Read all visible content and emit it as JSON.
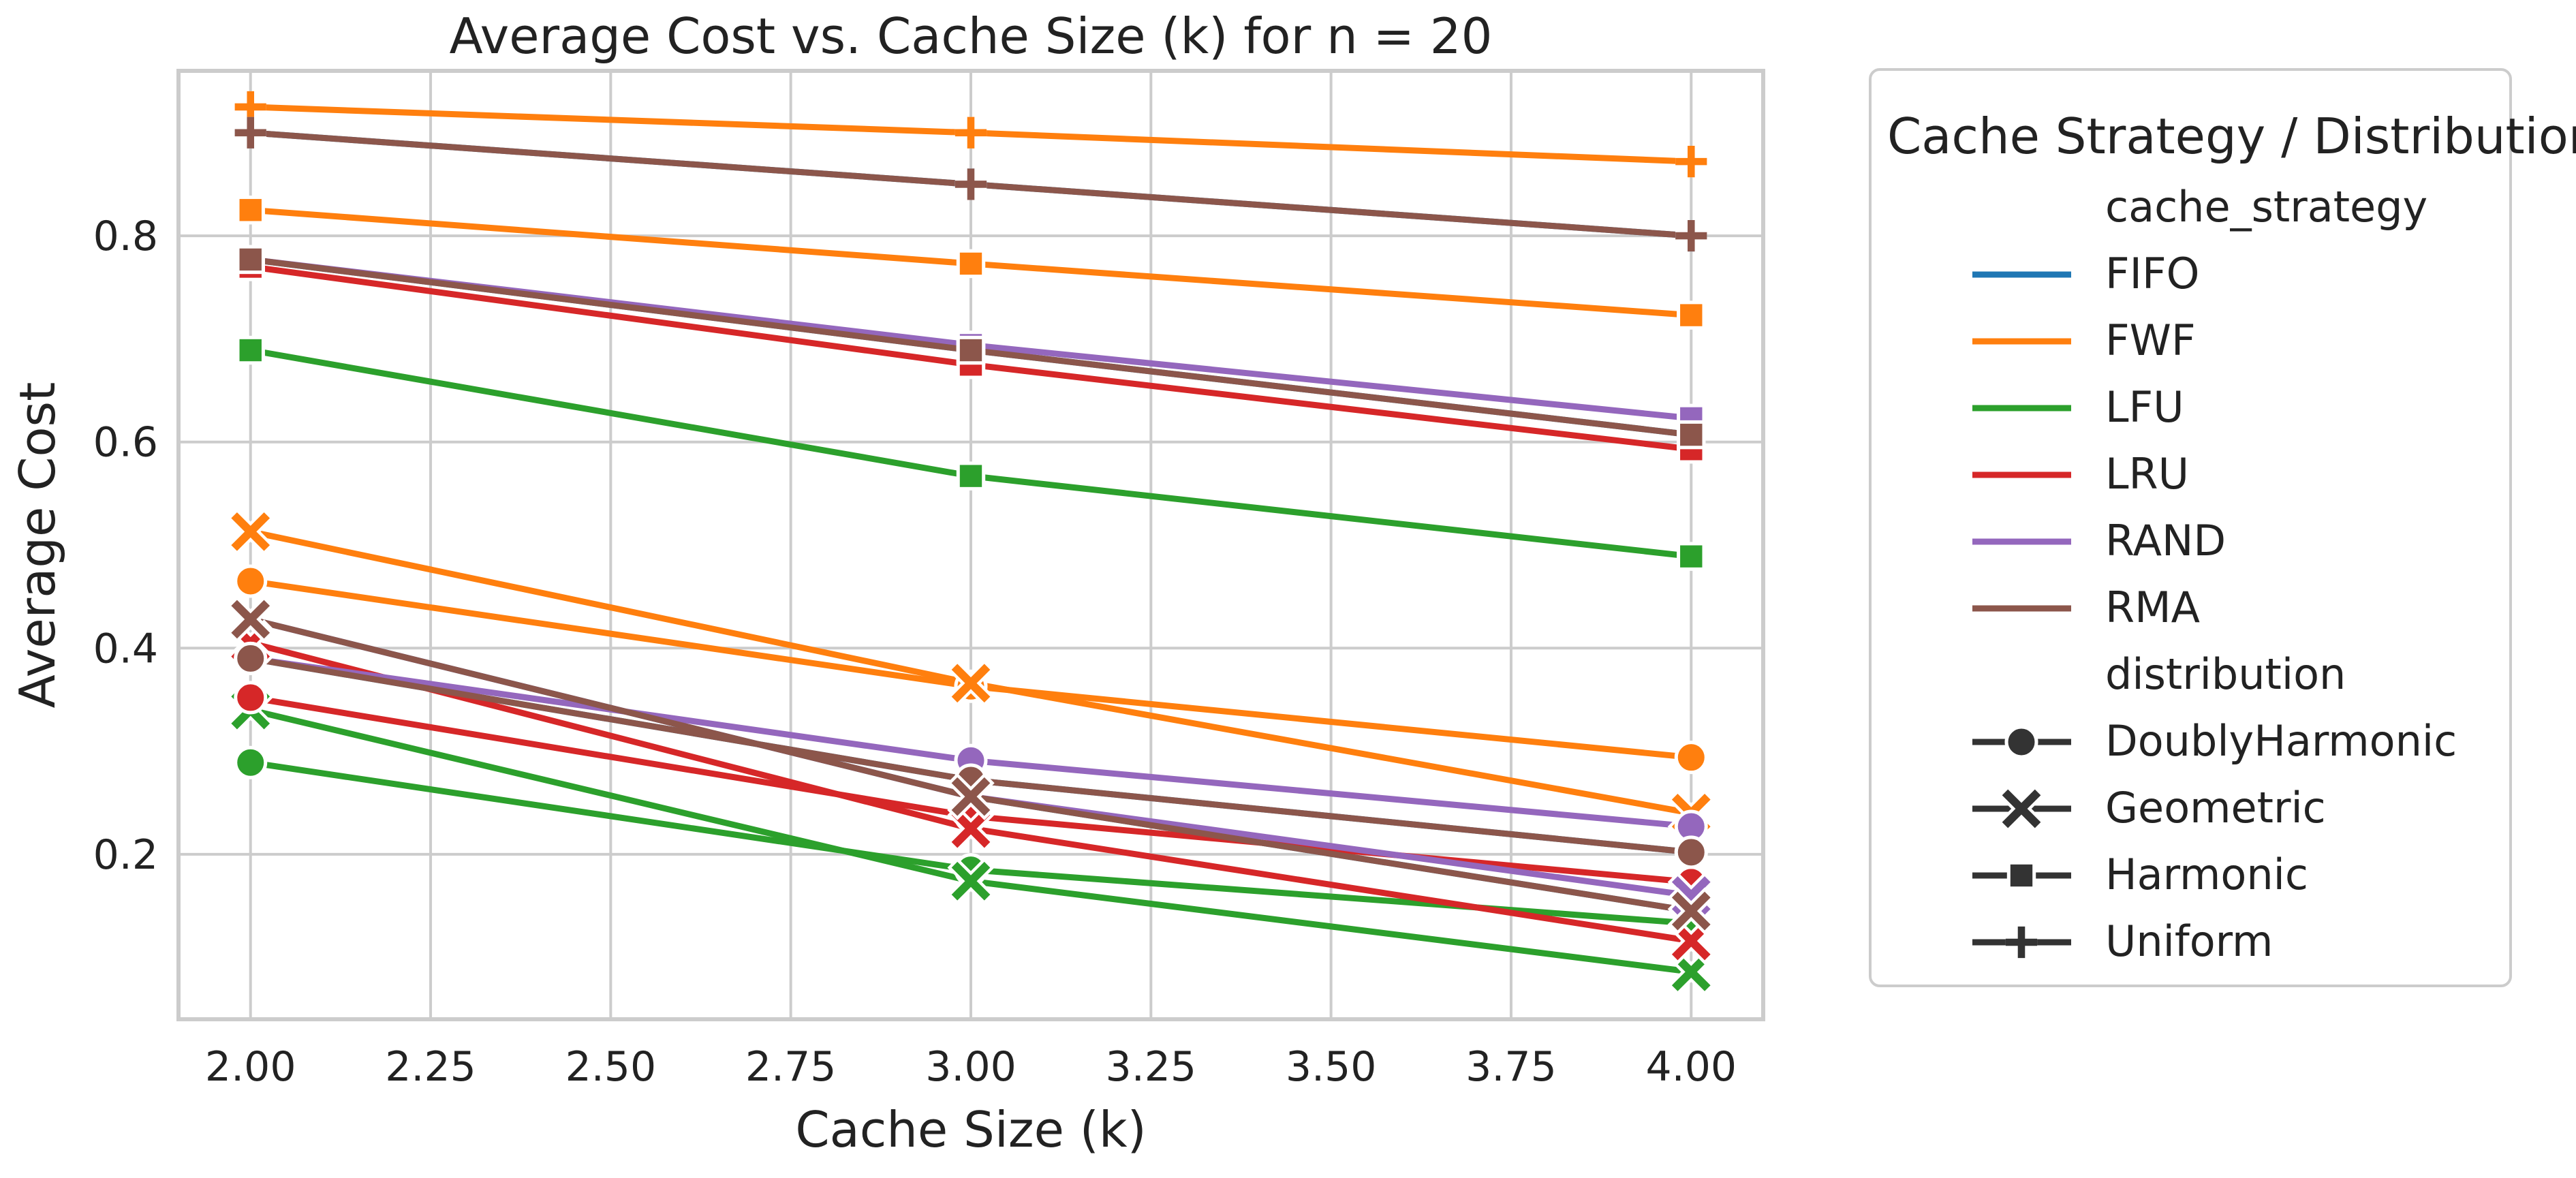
{
  "chart_data": {
    "type": "line",
    "title": "Average Cost vs. Cache Size (k) for n = 20",
    "xlabel": "Cache Size (k)",
    "ylabel": "Average Cost",
    "xlim": [
      1.9,
      4.1
    ],
    "ylim": [
      0.04,
      0.96
    ],
    "xticks": [
      2.0,
      2.25,
      2.5,
      2.75,
      3.0,
      3.25,
      3.5,
      3.75,
      4.0
    ],
    "xtick_labels": [
      "2.00",
      "2.25",
      "2.50",
      "2.75",
      "3.00",
      "3.25",
      "3.50",
      "3.75",
      "4.00"
    ],
    "yticks": [
      0.2,
      0.4,
      0.6,
      0.8
    ],
    "ytick_labels": [
      "0.2",
      "0.4",
      "0.6",
      "0.8"
    ],
    "grid": true,
    "legend_placement": "outside-right",
    "legend": {
      "title": "Cache Strategy / Distribution",
      "hue_title": "cache_strategy",
      "style_title": "distribution",
      "hue_entries": [
        {
          "label": "FIFO",
          "color": "#1f77b4"
        },
        {
          "label": "FWF",
          "color": "#ff7f0e"
        },
        {
          "label": "LFU",
          "color": "#2ca02c"
        },
        {
          "label": "LRU",
          "color": "#d62728"
        },
        {
          "label": "RAND",
          "color": "#9467bd"
        },
        {
          "label": "RMA",
          "color": "#8c564b"
        }
      ],
      "style_entries": [
        {
          "label": "DoublyHarmonic",
          "marker": "circle"
        },
        {
          "label": "Geometric",
          "marker": "x"
        },
        {
          "label": "Harmonic",
          "marker": "square"
        },
        {
          "label": "Uniform",
          "marker": "plus"
        }
      ]
    },
    "x": [
      2.0,
      3.0,
      4.0
    ],
    "series": [
      {
        "strategy": "FIFO",
        "distribution": "Uniform",
        "color": "#1f77b4",
        "marker": "plus",
        "values": [
          0.9,
          0.85,
          0.8
        ]
      },
      {
        "strategy": "FIFO",
        "distribution": "Harmonic",
        "color": "#1f77b4",
        "marker": "square",
        "values": [
          0.777,
          0.689,
          0.607
        ]
      },
      {
        "strategy": "FIFO",
        "distribution": "DoublyHarmonic",
        "color": "#1f77b4",
        "marker": "circle",
        "values": [
          0.39,
          0.272,
          0.202
        ]
      },
      {
        "strategy": "FIFO",
        "distribution": "Geometric",
        "color": "#1f77b4",
        "marker": "x",
        "values": [
          0.428,
          0.256,
          0.145
        ]
      },
      {
        "strategy": "FWF",
        "distribution": "Uniform",
        "color": "#ff7f0e",
        "marker": "plus",
        "values": [
          0.925,
          0.9,
          0.872
        ]
      },
      {
        "strategy": "FWF",
        "distribution": "Harmonic",
        "color": "#ff7f0e",
        "marker": "square",
        "values": [
          0.825,
          0.773,
          0.723
        ]
      },
      {
        "strategy": "FWF",
        "distribution": "DoublyHarmonic",
        "color": "#ff7f0e",
        "marker": "circle",
        "values": [
          0.465,
          0.363,
          0.294
        ]
      },
      {
        "strategy": "FWF",
        "distribution": "Geometric",
        "color": "#ff7f0e",
        "marker": "x",
        "values": [
          0.513,
          0.366,
          0.24
        ]
      },
      {
        "strategy": "LFU",
        "distribution": "Harmonic",
        "color": "#2ca02c",
        "marker": "square",
        "values": [
          0.689,
          0.567,
          0.489
        ]
      },
      {
        "strategy": "LFU",
        "distribution": "DoublyHarmonic",
        "color": "#2ca02c",
        "marker": "circle",
        "values": [
          0.289,
          0.185,
          0.133
        ]
      },
      {
        "strategy": "LFU",
        "distribution": "Geometric",
        "color": "#2ca02c",
        "marker": "x",
        "values": [
          0.34,
          0.174,
          0.086
        ]
      },
      {
        "strategy": "LRU",
        "distribution": "Harmonic",
        "color": "#d62728",
        "marker": "square",
        "values": [
          0.77,
          0.675,
          0.593
        ]
      },
      {
        "strategy": "LRU",
        "distribution": "DoublyHarmonic",
        "color": "#d62728",
        "marker": "circle",
        "values": [
          0.352,
          0.237,
          0.173
        ]
      },
      {
        "strategy": "LRU",
        "distribution": "Geometric",
        "color": "#d62728",
        "marker": "x",
        "values": [
          0.405,
          0.225,
          0.116
        ]
      },
      {
        "strategy": "RAND",
        "distribution": "Harmonic",
        "color": "#9467bd",
        "marker": "square",
        "values": [
          0.777,
          0.694,
          0.623
        ]
      },
      {
        "strategy": "RAND",
        "distribution": "DoublyHarmonic",
        "color": "#9467bd",
        "marker": "circle",
        "values": [
          0.39,
          0.291,
          0.227
        ]
      },
      {
        "strategy": "RAND",
        "distribution": "Geometric",
        "color": "#9467bd",
        "marker": "x",
        "values": [
          0.428,
          0.256,
          0.16
        ]
      },
      {
        "strategy": "RMA",
        "distribution": "Uniform",
        "color": "#8c564b",
        "marker": "plus",
        "values": [
          0.9,
          0.85,
          0.8
        ]
      },
      {
        "strategy": "RMA",
        "distribution": "Harmonic",
        "color": "#8c564b",
        "marker": "square",
        "values": [
          0.777,
          0.689,
          0.607
        ]
      },
      {
        "strategy": "RMA",
        "distribution": "DoublyHarmonic",
        "color": "#8c564b",
        "marker": "circle",
        "values": [
          0.39,
          0.272,
          0.202
        ]
      },
      {
        "strategy": "RMA",
        "distribution": "Geometric",
        "color": "#8c564b",
        "marker": "x",
        "values": [
          0.428,
          0.256,
          0.145
        ]
      }
    ]
  }
}
